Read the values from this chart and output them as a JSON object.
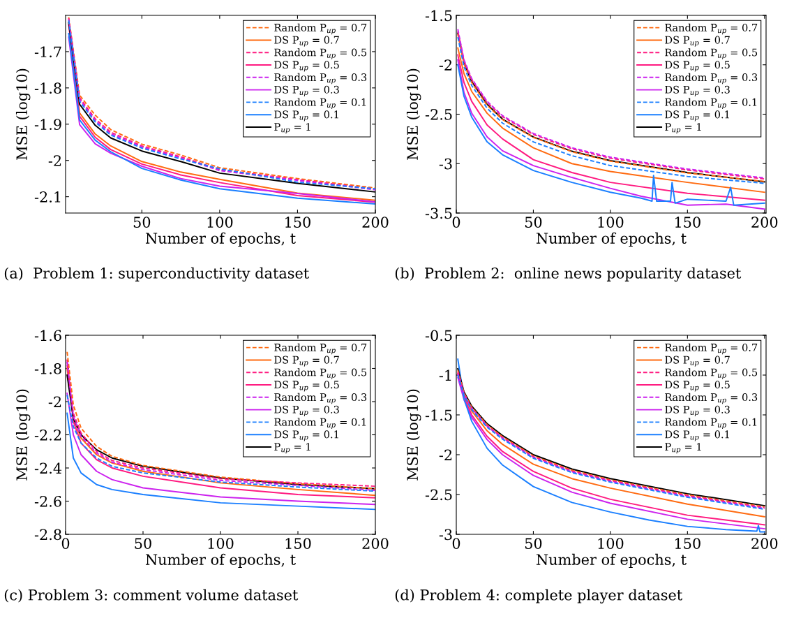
{
  "chart_data": [
    {
      "type": "line",
      "title": "(a)  Problem 1: superconductivity dataset",
      "xlabel": "Number of epochs, t",
      "ylabel": "MSE (log10)",
      "xlim": [
        1,
        200
      ],
      "ylim": [
        -2.145,
        -1.6
      ],
      "xticks": [
        50,
        100,
        150,
        200
      ],
      "yticks": [
        -2.1,
        -2,
        -1.9,
        -1.8,
        -1.7
      ],
      "legend": "top right",
      "x": [
        3,
        10,
        20,
        30,
        50,
        75,
        100,
        150,
        200
      ],
      "series": [
        {
          "name": "Random P$_{up}$ = 0.7",
          "color": "#ff6a10",
          "line_style": "dashed",
          "values": [
            -1.605,
            -1.82,
            -1.875,
            -1.915,
            -1.955,
            -1.985,
            -2.02,
            -2.05,
            -2.076
          ]
        },
        {
          "name": "DS P$_{up}$ = 0.7",
          "color": "#ff6a10",
          "line_style": "solid",
          "values": [
            -1.62,
            -1.869,
            -1.927,
            -1.96,
            -2.003,
            -2.032,
            -2.052,
            -2.09,
            -2.11
          ]
        },
        {
          "name": "Random P$_{up}$ = 0.5",
          "color": "#ff1a80",
          "line_style": "dashed",
          "values": [
            -1.608,
            -1.827,
            -1.885,
            -1.922,
            -1.96,
            -1.99,
            -2.025,
            -2.053,
            -2.079
          ]
        },
        {
          "name": "DS P$_{up}$ = 0.5",
          "color": "#ff1a80",
          "line_style": "solid",
          "values": [
            -1.625,
            -1.878,
            -1.936,
            -1.97,
            -2.01,
            -2.04,
            -2.061,
            -2.097,
            -2.115
          ]
        },
        {
          "name": "Random P$_{up}$ = 0.3",
          "color": "#cc22ee",
          "line_style": "dashed",
          "values": [
            -1.611,
            -1.832,
            -1.89,
            -1.926,
            -1.963,
            -1.993,
            -2.028,
            -2.055,
            -2.081
          ]
        },
        {
          "name": "DS P$_{up}$ = 0.3",
          "color": "#cc22ee",
          "line_style": "solid",
          "values": [
            -1.66,
            -1.901,
            -1.954,
            -1.98,
            -2.016,
            -2.05,
            -2.071,
            -2.091,
            -2.114
          ]
        },
        {
          "name": "Random P$_{up}$ = 0.1",
          "color": "#1a7fff",
          "line_style": "dashed",
          "values": [
            -1.614,
            -1.837,
            -1.894,
            -1.93,
            -1.966,
            -1.996,
            -2.023,
            -2.06,
            -2.078
          ]
        },
        {
          "name": "DS P$_{up}$ = 0.1",
          "color": "#1a7fff",
          "line_style": "solid",
          "values": [
            -1.65,
            -1.888,
            -1.944,
            -1.976,
            -2.022,
            -2.054,
            -2.078,
            -2.104,
            -2.12
          ]
        },
        {
          "name": "P$_{up}$ = 1",
          "color": "#000000",
          "line_style": "solid",
          "values": [
            -1.62,
            -1.845,
            -1.903,
            -1.938,
            -1.974,
            -2.003,
            -2.035,
            -2.063,
            -2.087
          ]
        }
      ]
    },
    {
      "type": "line",
      "title": "(b)  Problem 2:  online news popularity dataset",
      "xlabel": "Number of epochs, t",
      "ylabel": "MSE (log10)",
      "xlim": [
        0,
        201
      ],
      "ylim": [
        -3.5,
        -1.5
      ],
      "xticks": [
        0,
        50,
        100,
        150,
        200
      ],
      "yticks": [
        -3.5,
        -3,
        -2.5,
        -2,
        -1.5
      ],
      "legend": "top right",
      "x": [
        1,
        5,
        10,
        20,
        30,
        50,
        75,
        100,
        150,
        200
      ],
      "series": [
        {
          "name": "Random P$_{up}$ = 0.7",
          "color": "#ff6a10",
          "line_style": "dashed",
          "values": [
            -1.69,
            -1.99,
            -2.18,
            -2.41,
            -2.555,
            -2.735,
            -2.88,
            -2.975,
            -3.095,
            -3.18
          ]
        },
        {
          "name": "DS P$_{up}$ = 0.7",
          "color": "#ff6a10",
          "line_style": "solid",
          "values": [
            -1.83,
            -2.09,
            -2.27,
            -2.49,
            -2.64,
            -2.84,
            -3.0,
            -3.08,
            -3.19,
            -3.29
          ]
        },
        {
          "name": "Random P$_{up}$ = 0.5",
          "color": "#ff1a80",
          "line_style": "dashed",
          "values": [
            -1.66,
            -1.96,
            -2.15,
            -2.38,
            -2.525,
            -2.705,
            -2.85,
            -2.945,
            -3.065,
            -3.155
          ]
        },
        {
          "name": "DS P$_{up}$ = 0.5",
          "color": "#ff1a80",
          "line_style": "solid",
          "values": [
            -1.9,
            -2.18,
            -2.37,
            -2.61,
            -2.75,
            -2.96,
            -3.09,
            -3.19,
            -3.3,
            -3.37
          ]
        },
        {
          "name": "Random P$_{up}$ = 0.3",
          "color": "#cc22ee",
          "line_style": "dashed",
          "values": [
            -1.64,
            -1.95,
            -2.14,
            -2.37,
            -2.515,
            -2.695,
            -2.84,
            -2.935,
            -3.055,
            -3.145
          ]
        },
        {
          "name": "DS P$_{up}$ = 0.3",
          "color": "#cc22ee",
          "line_style": "solid",
          "x": [
            1,
            5,
            10,
            20,
            30,
            50,
            75,
            100,
            120,
            150,
            175,
            200
          ],
          "values": [
            -1.95,
            -2.28,
            -2.49,
            -2.73,
            -2.87,
            -3.02,
            -3.14,
            -3.25,
            -3.33,
            -3.42,
            -3.41,
            -3.46
          ]
        },
        {
          "name": "Random P$_{up}$ = 0.1",
          "color": "#1a7fff",
          "line_style": "dashed",
          "values": [
            -1.72,
            -2.02,
            -2.21,
            -2.44,
            -2.59,
            -2.78,
            -2.92,
            -3.02,
            -3.13,
            -3.2
          ]
        },
        {
          "name": "DS P$_{up}$ = 0.1",
          "color": "#1a7fff",
          "line_style": "solid",
          "x": [
            1,
            5,
            10,
            20,
            30,
            50,
            75,
            100,
            120,
            127,
            128,
            130,
            139,
            140,
            142,
            150,
            175,
            178,
            180,
            200
          ],
          "values": [
            -2.0,
            -2.32,
            -2.53,
            -2.78,
            -2.91,
            -3.07,
            -3.19,
            -3.29,
            -3.35,
            -3.38,
            -3.12,
            -3.38,
            -3.38,
            -3.19,
            -3.4,
            -3.36,
            -3.38,
            -3.24,
            -3.42,
            -3.4
          ]
        },
        {
          "name": "P$_{up}$ = 1",
          "color": "#000000",
          "line_style": "solid",
          "values": [
            -1.68,
            -1.98,
            -2.17,
            -2.4,
            -2.55,
            -2.73,
            -2.875,
            -2.97,
            -3.09,
            -3.185
          ]
        }
      ]
    },
    {
      "type": "line",
      "title": "(c) Problem 3: comment volume dataset",
      "xlabel": "Number of epochs, t",
      "ylabel": "MSE (log10)",
      "xlim": [
        0,
        200
      ],
      "ylim": [
        -2.8,
        -1.6
      ],
      "xticks": [
        0,
        50,
        100,
        150,
        200
      ],
      "yticks": [
        -2.8,
        -2.6,
        -2.4,
        -2.2,
        -2,
        -1.8,
        -1.6
      ],
      "legend": "top right",
      "x": [
        1,
        5,
        10,
        20,
        30,
        50,
        100,
        150,
        200
      ],
      "series": [
        {
          "name": "Random P$_{up}$ = 0.7",
          "color": "#ff6a10",
          "line_style": "dashed",
          "values": [
            -1.7,
            -2.02,
            -2.16,
            -2.27,
            -2.33,
            -2.385,
            -2.455,
            -2.495,
            -2.525
          ]
        },
        {
          "name": "DS P$_{up}$ = 0.7",
          "color": "#ff6a10",
          "line_style": "solid",
          "values": [
            -1.8,
            -2.1,
            -2.22,
            -2.32,
            -2.37,
            -2.42,
            -2.49,
            -2.53,
            -2.565
          ]
        },
        {
          "name": "Random P$_{up}$ = 0.5",
          "color": "#ff1a80",
          "line_style": "dashed",
          "values": [
            -1.78,
            -2.07,
            -2.19,
            -2.3,
            -2.355,
            -2.4,
            -2.465,
            -2.49,
            -2.51
          ]
        },
        {
          "name": "DS P$_{up}$ = 0.5",
          "color": "#ff1a80",
          "line_style": "solid",
          "values": [
            -1.75,
            -2.12,
            -2.25,
            -2.35,
            -2.4,
            -2.45,
            -2.52,
            -2.56,
            -2.58
          ]
        },
        {
          "name": "Random P$_{up}$ = 0.3",
          "color": "#cc22ee",
          "line_style": "dashed",
          "values": [
            -1.76,
            -2.09,
            -2.21,
            -2.31,
            -2.365,
            -2.41,
            -2.475,
            -2.505,
            -2.535
          ]
        },
        {
          "name": "DS P$_{up}$ = 0.3",
          "color": "#cc22ee",
          "line_style": "solid",
          "values": [
            -1.95,
            -2.2,
            -2.32,
            -2.42,
            -2.47,
            -2.52,
            -2.575,
            -2.6,
            -2.62
          ]
        },
        {
          "name": "Random P$_{up}$ = 0.1",
          "color": "#1a7fff",
          "line_style": "dashed",
          "values": [
            -1.96,
            -2.15,
            -2.25,
            -2.34,
            -2.39,
            -2.43,
            -2.485,
            -2.515,
            -2.54
          ]
        },
        {
          "name": "DS P$_{up}$ = 0.1",
          "color": "#1a7fff",
          "line_style": "solid",
          "values": [
            -2.07,
            -2.34,
            -2.43,
            -2.5,
            -2.53,
            -2.56,
            -2.61,
            -2.63,
            -2.65
          ]
        },
        {
          "name": "P$_{up}$ = 1",
          "color": "#000000",
          "line_style": "solid",
          "values": [
            -1.84,
            -2.1,
            -2.2,
            -2.29,
            -2.34,
            -2.39,
            -2.46,
            -2.5,
            -2.525
          ]
        }
      ]
    },
    {
      "type": "line",
      "title": "(d) Problem 4: complete player dataset",
      "xlabel": "Number of epochs, t",
      "ylabel": "MSE (log10)",
      "xlim": [
        0,
        201
      ],
      "ylim": [
        -3,
        -0.5
      ],
      "xticks": [
        0,
        50,
        100,
        150,
        200
      ],
      "yticks": [
        -3,
        -2.5,
        -2,
        -1.5,
        -1,
        -0.5
      ],
      "legend": "top right",
      "x": [
        1,
        5,
        10,
        20,
        30,
        50,
        75,
        100,
        150,
        200
      ],
      "series": [
        {
          "name": "Random P$_{up}$ = 0.7",
          "color": "#ff6a10",
          "line_style": "dashed",
          "values": [
            -0.94,
            -1.225,
            -1.405,
            -1.625,
            -1.775,
            -2.015,
            -2.195,
            -2.315,
            -2.505,
            -2.655
          ]
        },
        {
          "name": "DS P$_{up}$ = 0.7",
          "color": "#ff6a10",
          "line_style": "solid",
          "values": [
            -0.98,
            -1.25,
            -1.45,
            -1.7,
            -1.87,
            -2.12,
            -2.3,
            -2.42,
            -2.62,
            -2.78
          ]
        },
        {
          "name": "Random P$_{up}$ = 0.5",
          "color": "#ff1a80",
          "line_style": "dashed",
          "values": [
            -0.96,
            -1.235,
            -1.415,
            -1.635,
            -1.785,
            -2.025,
            -2.205,
            -2.325,
            -2.515,
            -2.665
          ]
        },
        {
          "name": "DS P$_{up}$ = 0.5",
          "color": "#ff1a80",
          "line_style": "solid",
          "values": [
            -1.0,
            -1.28,
            -1.5,
            -1.77,
            -1.96,
            -2.21,
            -2.42,
            -2.56,
            -2.76,
            -2.88
          ]
        },
        {
          "name": "Random P$_{up}$ = 0.3",
          "color": "#cc22ee",
          "line_style": "dashed",
          "values": [
            -0.98,
            -1.245,
            -1.425,
            -1.645,
            -1.795,
            -2.035,
            -2.215,
            -2.335,
            -2.525,
            -2.675
          ]
        },
        {
          "name": "DS P$_{up}$ = 0.3",
          "color": "#cc22ee",
          "line_style": "solid",
          "values": [
            -1.03,
            -1.31,
            -1.53,
            -1.81,
            -2.0,
            -2.26,
            -2.47,
            -2.61,
            -2.81,
            -2.93
          ]
        },
        {
          "name": "Random P$_{up}$ = 0.1",
          "color": "#1a7fff",
          "line_style": "dashed",
          "values": [
            -1.0,
            -1.255,
            -1.435,
            -1.655,
            -1.805,
            -2.045,
            -2.225,
            -2.345,
            -2.535,
            -2.685
          ]
        },
        {
          "name": "DS P$_{up}$ = 0.1",
          "color": "#1a7fff",
          "line_style": "solid",
          "x": [
            1,
            5,
            10,
            20,
            30,
            50,
            75,
            100,
            125,
            150,
            175,
            195,
            196,
            197,
            200
          ],
          "values": [
            -0.8,
            -1.3,
            -1.58,
            -1.92,
            -2.13,
            -2.4,
            -2.6,
            -2.72,
            -2.82,
            -2.9,
            -2.94,
            -2.96,
            -2.89,
            -2.97,
            -2.97
          ]
        },
        {
          "name": "P$_{up}$ = 1",
          "color": "#000000",
          "line_style": "solid",
          "values": [
            -0.92,
            -1.21,
            -1.39,
            -1.61,
            -1.76,
            -2.0,
            -2.18,
            -2.3,
            -2.49,
            -2.64
          ]
        }
      ]
    }
  ]
}
